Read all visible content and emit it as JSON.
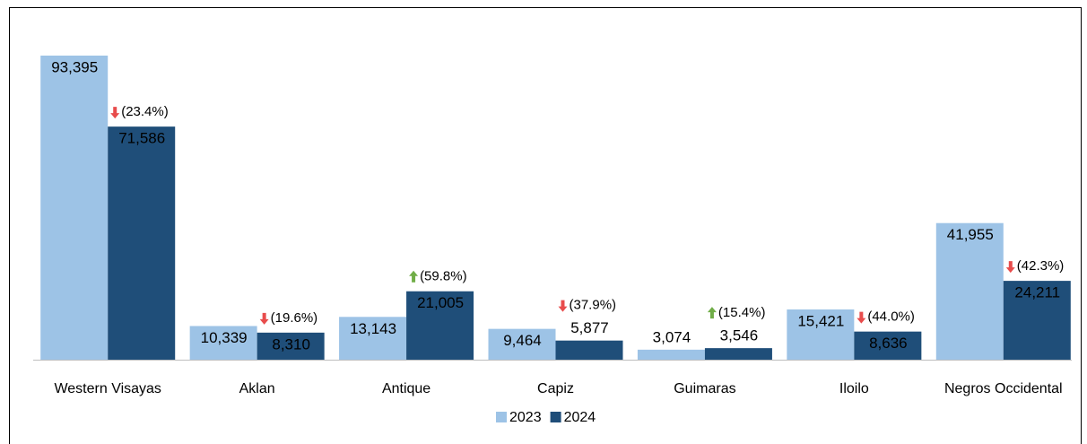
{
  "chart_data": {
    "type": "bar",
    "categories": [
      "Western Visayas",
      "Aklan",
      "Antique",
      "Capiz",
      "Guimaras",
      "Iloilo",
      "Negros Occidental"
    ],
    "series": [
      {
        "name": "2023",
        "color": "#9dc3e6",
        "values": [
          93395,
          10339,
          13143,
          9464,
          3074,
          15421,
          41955
        ],
        "value_labels": [
          "93,395",
          "10,339",
          "13,143",
          "9,464",
          "3,074",
          "15,421",
          "41,955"
        ]
      },
      {
        "name": "2024",
        "color": "#1f4e79",
        "values": [
          71586,
          8310,
          21005,
          5877,
          3546,
          8636,
          24211
        ],
        "value_labels": [
          "71,586",
          "8,310",
          "21,005",
          "5,877",
          "3,546",
          "8,636",
          "24,211"
        ]
      }
    ],
    "annotations": [
      {
        "text": "(23.4%)",
        "direction": "down",
        "color": "#e84c4c"
      },
      {
        "text": "(19.6%)",
        "direction": "down",
        "color": "#e84c4c"
      },
      {
        "text": "(59.8%)",
        "direction": "up",
        "color": "#70ad47"
      },
      {
        "text": "(37.9%)",
        "direction": "down",
        "color": "#e84c4c"
      },
      {
        "text": "(15.4%)",
        "direction": "up",
        "color": "#70ad47"
      },
      {
        "text": "(44.0%)",
        "direction": "down",
        "color": "#e84c4c"
      },
      {
        "text": "(42.3%)",
        "direction": "down",
        "color": "#e84c4c"
      }
    ],
    "ylim": [
      0,
      100000
    ],
    "legend": "bottom"
  }
}
